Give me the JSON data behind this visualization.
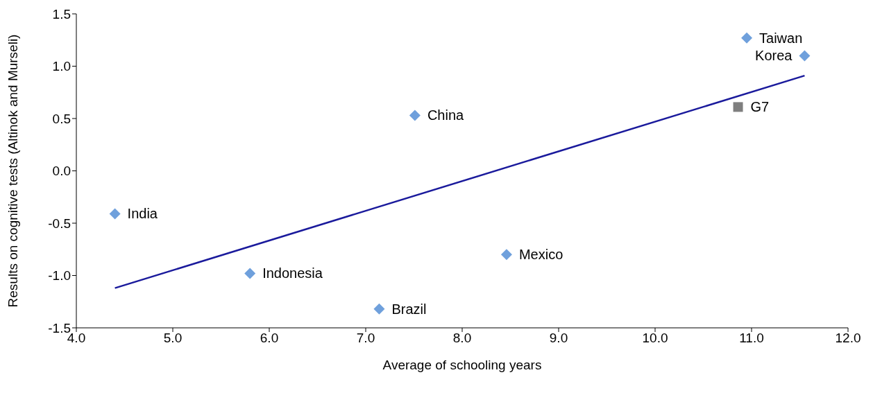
{
  "chart_data": {
    "type": "scatter",
    "xlabel": "Average of schooling years",
    "ylabel": "Results on cognitive tests (Altinok and Murseli)",
    "xlim": [
      4,
      12
    ],
    "xticks": [
      {
        "value": 4,
        "label": "4.0"
      },
      {
        "value": 5,
        "label": "5.0"
      },
      {
        "value": 6,
        "label": "6.0"
      },
      {
        "value": 7,
        "label": "7.0"
      },
      {
        "value": 8,
        "label": "8.0"
      },
      {
        "value": 9,
        "label": "9.0"
      },
      {
        "value": 10,
        "label": "10.0"
      },
      {
        "value": 11,
        "label": "11.0"
      },
      {
        "value": 12,
        "label": "12.0"
      }
    ],
    "ylim": [
      -1.5,
      1.5
    ],
    "yticks": [
      {
        "value": -1.5,
        "label": "-1.5"
      },
      {
        "value": -1,
        "label": "-1.0"
      },
      {
        "value": -0.5,
        "label": "-0.5"
      },
      {
        "value": 0,
        "label": "0.0"
      },
      {
        "value": 0.5,
        "label": "0.5"
      },
      {
        "value": 1,
        "label": "1.0"
      },
      {
        "value": 1.5,
        "label": "1.5"
      }
    ],
    "grid": false,
    "legend": false,
    "series": [
      {
        "type": "scatter",
        "marker": "diamond",
        "color": "#6fa0dc",
        "x": [
          10.95,
          11.55,
          7.51,
          4.4,
          5.8,
          7.14,
          8.46
        ],
        "values": [
          1.27,
          1.1,
          0.53,
          -0.41,
          -0.98,
          -1.32,
          -0.8
        ],
        "value_labels": [
          "Taiwan",
          "Korea",
          "China",
          "India",
          "Indonesia",
          "Brazil",
          "Mexico"
        ]
      },
      {
        "type": "scatter",
        "marker": "square",
        "color": "#7f7f7f",
        "x": [
          10.86
        ],
        "values": [
          0.61
        ],
        "value_labels": [
          "G7"
        ]
      },
      {
        "type": "line",
        "marker": "none",
        "color": "#1a1a9c",
        "x": [
          4.4,
          11.55
        ],
        "values": [
          -1.12,
          0.91
        ]
      }
    ]
  }
}
